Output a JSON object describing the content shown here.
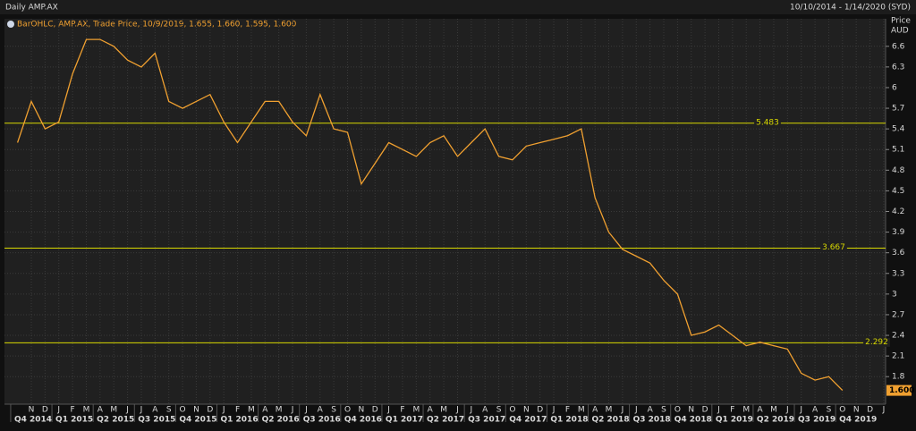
{
  "chart_data": {
    "type": "line",
    "title": "Daily AMP.AX",
    "date_range": "10/10/2014 - 1/14/2020 (SYD)",
    "legend": "BarOHLC, AMP.AX, Trade Price, 10/9/2019, 1.655, 1.660, 1.595, 1.600",
    "y_axis_label": "Price",
    "y_axis_unit": "AUD",
    "color": "#f0a030",
    "level_color": "#d8d800",
    "months": [
      "N",
      "D",
      "J",
      "F",
      "M",
      "A",
      "M",
      "J",
      "J",
      "A",
      "S",
      "O",
      "N",
      "D",
      "J",
      "F",
      "M",
      "A",
      "M",
      "J",
      "J",
      "A",
      "S",
      "O",
      "N",
      "D",
      "J",
      "F",
      "M",
      "A",
      "M",
      "J",
      "J",
      "A",
      "S",
      "O",
      "N",
      "D",
      "J",
      "F",
      "M",
      "A",
      "M",
      "J",
      "J",
      "A",
      "S",
      "O",
      "N",
      "D",
      "J",
      "F",
      "M",
      "A",
      "M",
      "J",
      "J",
      "A",
      "S",
      "O",
      "N",
      "D",
      "J"
    ],
    "quarters": [
      "Q4 2014",
      "Q1 2015",
      "Q2 2015",
      "Q3 2015",
      "Q4 2015",
      "Q1 2016",
      "Q2 2016",
      "Q3 2016",
      "Q4 2016",
      "Q1 2017",
      "Q2 2017",
      "Q3 2017",
      "Q4 2017",
      "Q1 2018",
      "Q2 2018",
      "Q3 2018",
      "Q4 2018",
      "Q1 2019",
      "Q2 2019",
      "Q3 2019",
      "Q4 2019"
    ],
    "x": [
      "2014-10",
      "2014-11",
      "2014-12",
      "2015-01",
      "2015-02",
      "2015-03",
      "2015-04",
      "2015-05",
      "2015-06",
      "2015-07",
      "2015-08",
      "2015-09",
      "2015-10",
      "2015-11",
      "2015-12",
      "2016-01",
      "2016-02",
      "2016-03",
      "2016-04",
      "2016-05",
      "2016-06",
      "2016-07",
      "2016-08",
      "2016-09",
      "2016-10",
      "2016-11",
      "2016-12",
      "2017-01",
      "2017-02",
      "2017-03",
      "2017-04",
      "2017-05",
      "2017-06",
      "2017-07",
      "2017-08",
      "2017-09",
      "2017-10",
      "2017-11",
      "2017-12",
      "2018-01",
      "2018-02",
      "2018-03",
      "2018-04",
      "2018-05",
      "2018-06",
      "2018-07",
      "2018-08",
      "2018-09",
      "2018-10",
      "2018-11",
      "2018-12",
      "2019-01",
      "2019-02",
      "2019-03",
      "2019-04",
      "2019-05",
      "2019-06",
      "2019-07",
      "2019-08",
      "2019-09",
      "2019-10"
    ],
    "values": [
      5.2,
      5.8,
      5.4,
      5.5,
      6.2,
      6.7,
      6.7,
      6.6,
      6.4,
      6.3,
      6.5,
      5.8,
      5.7,
      5.8,
      5.9,
      5.5,
      5.2,
      5.5,
      5.8,
      5.8,
      5.5,
      5.3,
      5.9,
      5.4,
      5.35,
      4.6,
      4.9,
      5.2,
      5.1,
      5.0,
      5.2,
      5.3,
      5.0,
      5.2,
      5.4,
      5.0,
      4.95,
      5.15,
      5.2,
      5.25,
      5.3,
      5.4,
      4.4,
      3.9,
      3.65,
      3.55,
      3.45,
      3.2,
      3.0,
      2.4,
      2.45,
      2.55,
      2.4,
      2.25,
      2.3,
      2.25,
      2.2,
      1.85,
      1.75,
      1.8,
      1.6
    ],
    "levels": [
      5.483,
      3.667,
      2.292
    ],
    "last_price": {
      "value": 1.6,
      "label": "1.600"
    },
    "ylim": [
      1.4,
      7.0
    ],
    "yticks": [
      6.6,
      6.3,
      6,
      5.7,
      5.4,
      5.1,
      4.8,
      4.5,
      4.2,
      3.9,
      3.6,
      3.3,
      3,
      2.7,
      2.4,
      2.1,
      1.8
    ],
    "grid": true
  }
}
